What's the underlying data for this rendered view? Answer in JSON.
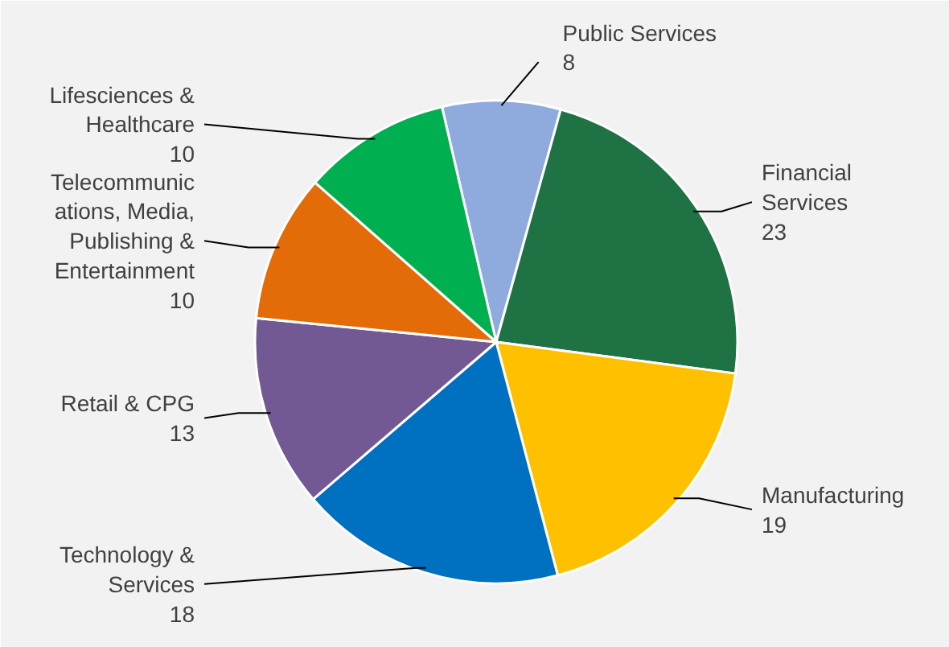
{
  "chart_data": {
    "type": "pie",
    "categories": [
      "Public Services",
      "Financial\nServices",
      "Manufacturing",
      "Technology &\nServices",
      "Retail & CPG",
      "Telecommunic\nations, Media,\nPublishing &\nEntertainment",
      "Lifesciences &\nHealthcare"
    ],
    "values": [
      8,
      23,
      19,
      18,
      13,
      10,
      10
    ],
    "colors": [
      "#8faadc",
      "#1f7244",
      "#ffc000",
      "#0070c0",
      "#725993",
      "#e36c09",
      "#00b050"
    ],
    "data_labels": true
  }
}
